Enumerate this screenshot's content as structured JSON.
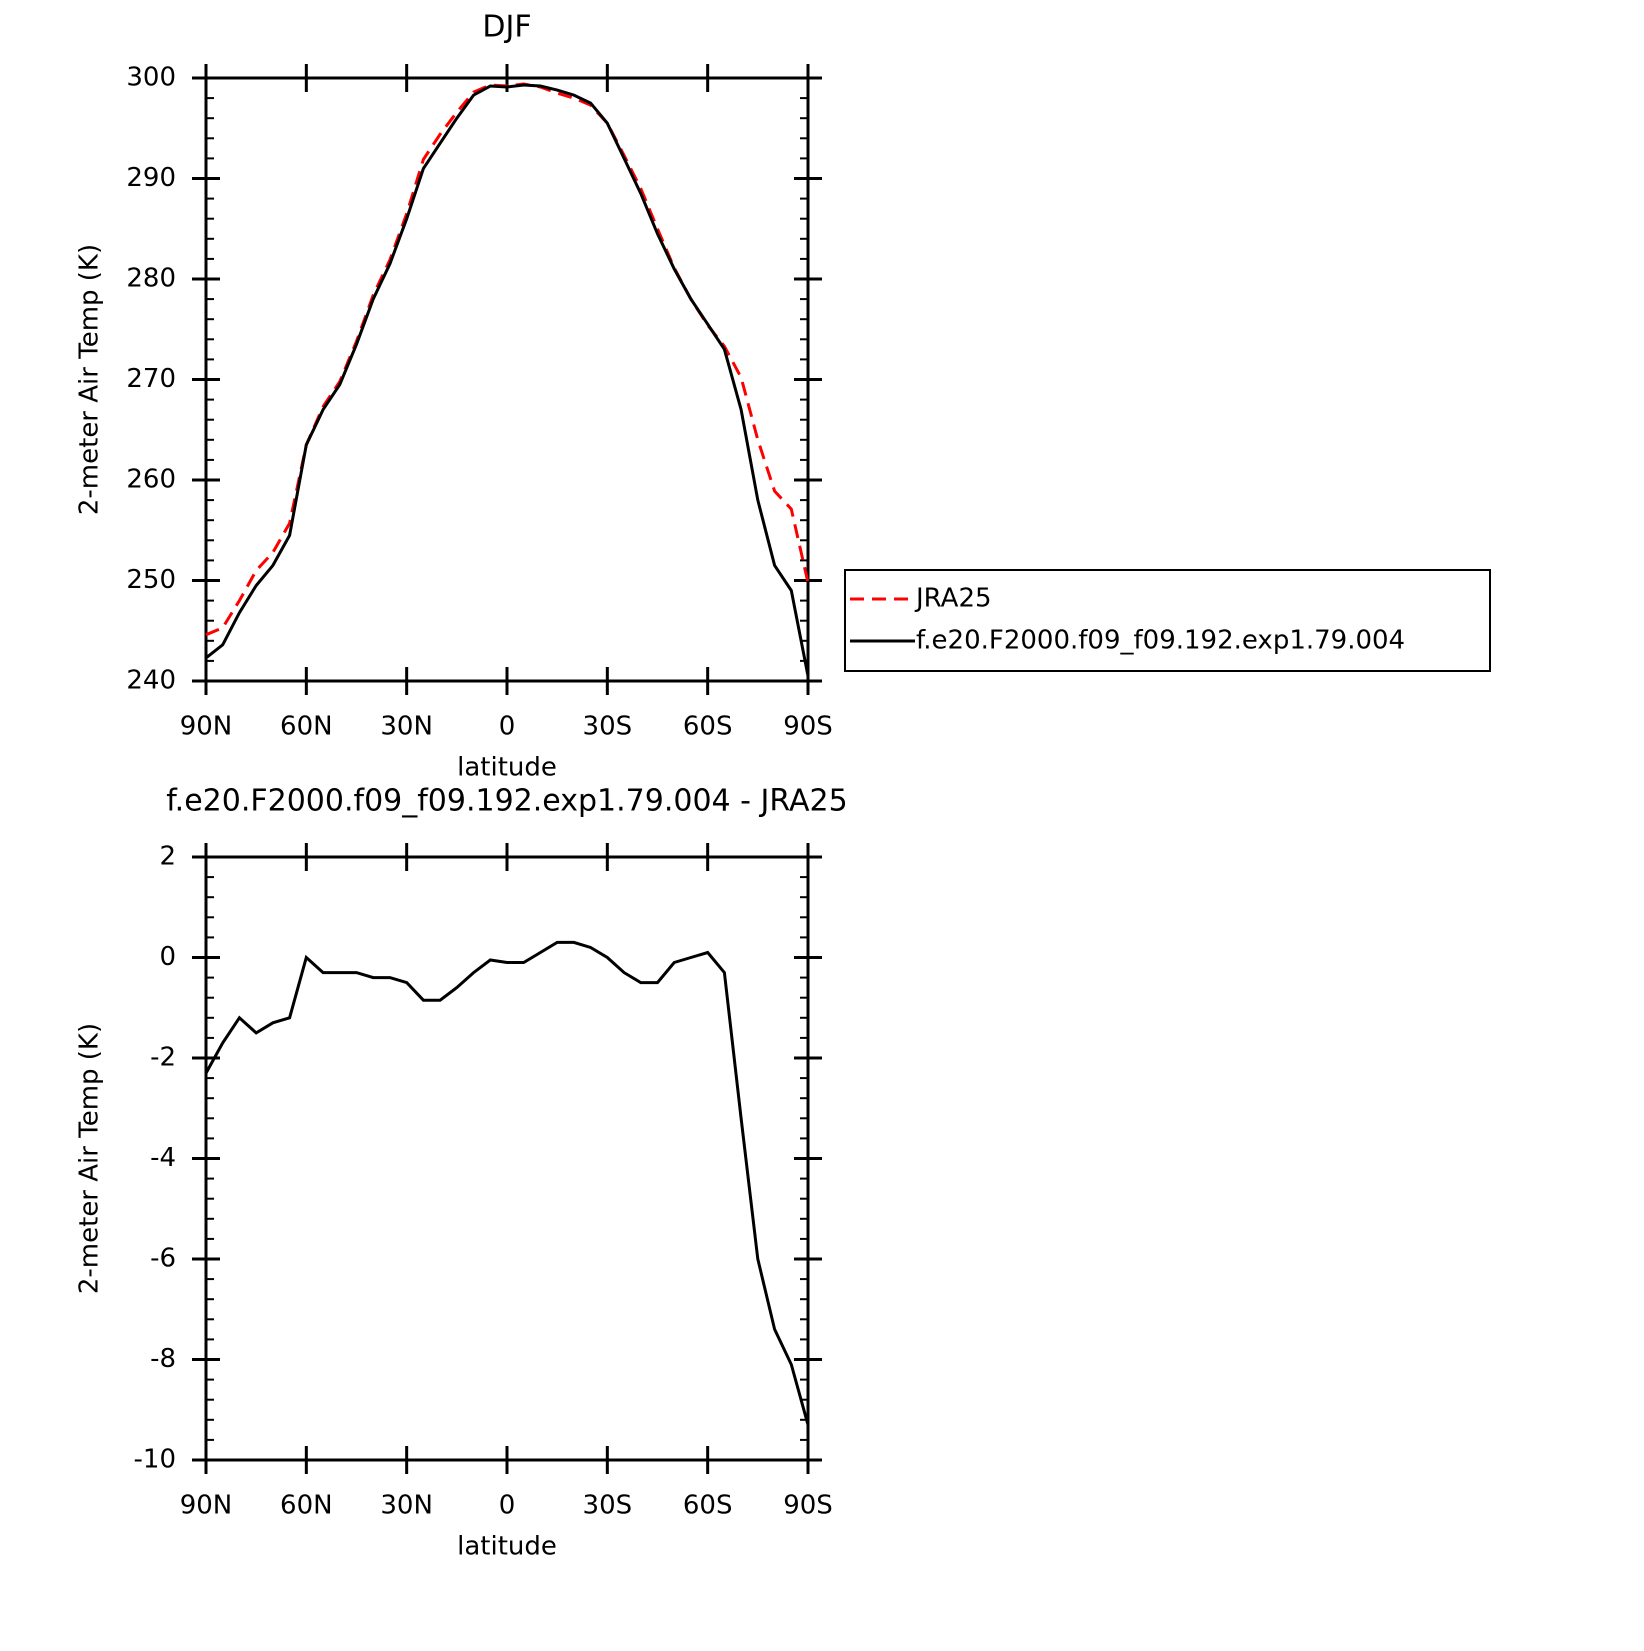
{
  "chart_data": [
    {
      "type": "line",
      "title": "DJF",
      "x_label": "latitude",
      "y_label": "2-meter Air Temp (K)",
      "x": [
        90,
        85,
        80,
        75,
        70,
        65,
        60,
        55,
        50,
        45,
        40,
        35,
        30,
        25,
        20,
        15,
        10,
        5,
        0,
        -5,
        -10,
        -15,
        -20,
        -25,
        -30,
        -35,
        -40,
        -45,
        -50,
        -55,
        -60,
        -65,
        -70,
        -75,
        -80,
        -85,
        -90
      ],
      "xlim": [
        90,
        -90
      ],
      "xticks": [
        {
          "value": 90,
          "label": "90N"
        },
        {
          "value": 60,
          "label": "60N"
        },
        {
          "value": 30,
          "label": "30N"
        },
        0,
        {
          "value": -30,
          "label": "30S"
        },
        {
          "value": -60,
          "label": "60S"
        },
        {
          "value": -90,
          "label": "90S"
        }
      ],
      "ylim": [
        240,
        300
      ],
      "yticks": [
        240,
        250,
        260,
        270,
        280,
        290,
        300
      ],
      "legend": "right",
      "series": [
        {
          "name": "JRA25",
          "color": "#ff0000",
          "dash": true,
          "values": [
            244.6,
            245.3,
            248.0,
            251.0,
            252.8,
            255.7,
            263.5,
            267.3,
            269.8,
            273.8,
            278.4,
            281.9,
            286.5,
            291.9,
            294.4,
            296.6,
            298.6,
            299.3,
            299.2,
            299.4,
            299.1,
            298.5,
            298.0,
            297.3,
            295.5,
            292.3,
            289.0,
            285.0,
            281.1,
            278.0,
            275.4,
            273.3,
            270.2,
            264.0,
            258.9,
            257.1,
            249.8
          ]
        },
        {
          "name": "f.e20.F2000.f09_f09.192.exp1.79.004",
          "color": "#000000",
          "dash": false,
          "values": [
            242.3,
            243.6,
            246.8,
            249.5,
            251.5,
            254.5,
            263.5,
            267.0,
            269.5,
            273.5,
            278.0,
            281.5,
            286.0,
            291.0,
            293.5,
            296.0,
            298.3,
            299.2,
            299.1,
            299.3,
            299.2,
            298.8,
            298.3,
            297.5,
            295.5,
            292.0,
            288.5,
            284.5,
            281.0,
            278.0,
            275.5,
            273.0,
            267.0,
            258.0,
            251.5,
            249.0,
            240.5
          ]
        }
      ]
    },
    {
      "type": "line",
      "title": "f.e20.F2000.f09_f09.192.exp1.79.004 - JRA25",
      "x_label": "latitude",
      "y_label": "2-meter Air Temp (K)",
      "x": [
        90,
        85,
        80,
        75,
        70,
        65,
        60,
        55,
        50,
        45,
        40,
        35,
        30,
        25,
        20,
        15,
        10,
        5,
        0,
        -5,
        -10,
        -15,
        -20,
        -25,
        -30,
        -35,
        -40,
        -45,
        -50,
        -55,
        -60,
        -65,
        -70,
        -75,
        -80,
        -85,
        -90
      ],
      "xlim": [
        90,
        -90
      ],
      "xticks": [
        {
          "value": 90,
          "label": "90N"
        },
        {
          "value": 60,
          "label": "60N"
        },
        {
          "value": 30,
          "label": "30N"
        },
        0,
        {
          "value": -30,
          "label": "30S"
        },
        {
          "value": -60,
          "label": "60S"
        },
        {
          "value": -90,
          "label": "90S"
        }
      ],
      "ylim": [
        -10,
        2
      ],
      "yticks": [
        -10,
        -8,
        -6,
        -4,
        -2,
        0,
        2
      ],
      "series": [
        {
          "color": "#000000",
          "dash": false,
          "values": [
            -2.3,
            -1.7,
            -1.2,
            -1.5,
            -1.3,
            -1.2,
            0,
            -0.3,
            -0.3,
            -0.3,
            -0.4,
            -0.4,
            -0.5,
            -0.85,
            -0.85,
            -0.6,
            -0.3,
            -0.05,
            -0.1,
            -0.1,
            0.1,
            0.3,
            0.3,
            0.2,
            0,
            -0.3,
            -0.5,
            -0.5,
            -0.1,
            0,
            0.1,
            -0.3,
            -3.2,
            -6.0,
            -7.4,
            -8.1,
            -9.3
          ]
        }
      ]
    }
  ]
}
